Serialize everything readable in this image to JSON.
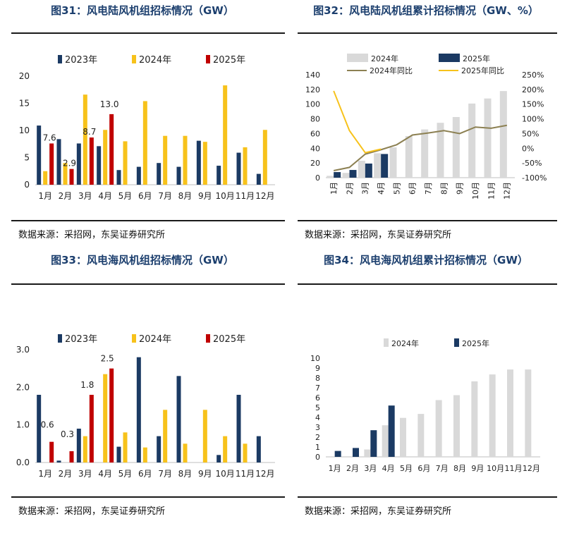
{
  "panels": [
    {
      "id": "fig31",
      "title": "图31：风电陆风机组招标情况（GW）",
      "source": "数据来源：采招网，东吴证券研究所",
      "chart_data": {
        "type": "bar",
        "categories": [
          "1月",
          "2月",
          "3月",
          "4月",
          "5月",
          "6月",
          "7月",
          "8月",
          "9月",
          "10月",
          "11月",
          "12月"
        ],
        "series": [
          {
            "name": "2023年",
            "color": "#1b3a63",
            "values": [
              10.9,
              8.4,
              7.6,
              7.1,
              2.7,
              3.3,
              4.0,
              3.3,
              8.1,
              3.5,
              5.9,
              2.0
            ]
          },
          {
            "name": "2024年",
            "color": "#f7c21b",
            "values": [
              2.5,
              4.0,
              16.6,
              10.1,
              8.0,
              15.4,
              9.0,
              9.0,
              7.9,
              18.3,
              6.9,
              10.1
            ]
          },
          {
            "name": "2025年",
            "color": "#c00000",
            "values": [
              7.6,
              2.9,
              8.7,
              13.0,
              null,
              null,
              null,
              null,
              null,
              null,
              null,
              null
            ]
          }
        ],
        "data_labels": [
          "7.6",
          "2.9",
          "8.7",
          "13.0"
        ],
        "yticks": [
          "0",
          "5",
          "10",
          "15",
          "20"
        ],
        "ylim": [
          0,
          20
        ]
      }
    },
    {
      "id": "fig32",
      "title": "图32：风电陆风机组累计招标情况（GW、%）",
      "source": "数据来源：采招网，东吴证券研究所",
      "chart_data": {
        "type": "bar",
        "categories": [
          "1月",
          "2月",
          "3月",
          "4月",
          "5月",
          "6月",
          "7月",
          "8月",
          "9月",
          "10月",
          "11月",
          "12月"
        ],
        "series": [
          {
            "name": "2024年",
            "type": "bar",
            "color": "#d9d9d9",
            "values": [
              2.5,
              6.5,
              23.1,
              33.2,
              41.2,
              56.6,
              65.6,
              74.6,
              82.5,
              100.8,
              107.7,
              117.8
            ]
          },
          {
            "name": "2025年",
            "type": "bar",
            "color": "#1b3a63",
            "values": [
              7.6,
              10.5,
              19.2,
              32.2,
              null,
              null,
              null,
              null,
              null,
              null,
              null,
              null
            ]
          },
          {
            "name": "2024年同比",
            "type": "line",
            "axis": "right",
            "color": "#8c8052",
            "values": [
              -76,
              -65,
              -20,
              -5,
              12,
              45,
              52,
              60,
              50,
              72,
              68,
              78
            ]
          },
          {
            "name": "2025年同比",
            "type": "line",
            "axis": "right",
            "color": "#f7c21b",
            "values": [
              195,
              60,
              -15,
              -3,
              null,
              null,
              null,
              null,
              null,
              null,
              null,
              null
            ]
          }
        ],
        "yticks": [
          "0",
          "20",
          "40",
          "60",
          "80",
          "100",
          "120",
          "140"
        ],
        "ylim": [
          0,
          140
        ],
        "y2ticks": [
          "-100%",
          "-50%",
          "0%",
          "50%",
          "100%",
          "150%",
          "200%",
          "250%"
        ],
        "y2lim": [
          -100,
          250
        ]
      }
    },
    {
      "id": "fig33",
      "title": "图33：风电海风机组招标情况（GW）",
      "source": "数据来源：采招网，东吴证券研究所",
      "chart_data": {
        "type": "bar",
        "categories": [
          "1月",
          "2月",
          "3月",
          "4月",
          "5月",
          "6月",
          "7月",
          "8月",
          "9月",
          "10月",
          "11月",
          "12月"
        ],
        "series": [
          {
            "name": "2023年",
            "color": "#1b3a63",
            "values": [
              1.8,
              0.05,
              0.9,
              null,
              0.42,
              2.8,
              0.7,
              2.3,
              null,
              0.2,
              1.8,
              0.7
            ]
          },
          {
            "name": "2024年",
            "color": "#f7c21b",
            "values": [
              null,
              null,
              0.7,
              2.35,
              0.8,
              0.4,
              1.4,
              0.5,
              1.4,
              0.7,
              0.5,
              null
            ]
          },
          {
            "name": "2025年",
            "color": "#c00000",
            "values": [
              0.55,
              0.3,
              1.8,
              2.5,
              null,
              null,
              null,
              null,
              null,
              null,
              null,
              null
            ]
          }
        ],
        "data_labels": [
          "0.6",
          "0.3",
          "1.8",
          "2.5"
        ],
        "yticks": [
          "0.0",
          "1.0",
          "2.0",
          "3.0"
        ],
        "ylim": [
          0,
          3
        ]
      }
    },
    {
      "id": "fig34",
      "title": "图34：风电海风机组累计招标情况（GW）",
      "source": "数据来源：采招网，东吴证券研究所",
      "chart_data": {
        "type": "bar",
        "categories": [
          "1月",
          "2月",
          "3月",
          "4月",
          "5月",
          "6月",
          "7月",
          "8月",
          "9月",
          "10月",
          "11月",
          "12月"
        ],
        "series": [
          {
            "name": "2024年",
            "color": "#d9d9d9",
            "values": [
              null,
              null,
              0.75,
              3.2,
              3.95,
              4.35,
              5.75,
              6.25,
              7.65,
              8.35,
              8.85,
              8.85
            ]
          },
          {
            "name": "2025年",
            "color": "#1b3a63",
            "values": [
              0.6,
              0.9,
              2.7,
              5.2,
              null,
              null,
              null,
              null,
              null,
              null,
              null,
              null
            ]
          }
        ],
        "yticks": [
          "0",
          "1",
          "2",
          "3",
          "4",
          "5",
          "6",
          "7",
          "8",
          "9",
          "10"
        ],
        "ylim": [
          0,
          10
        ]
      }
    }
  ]
}
